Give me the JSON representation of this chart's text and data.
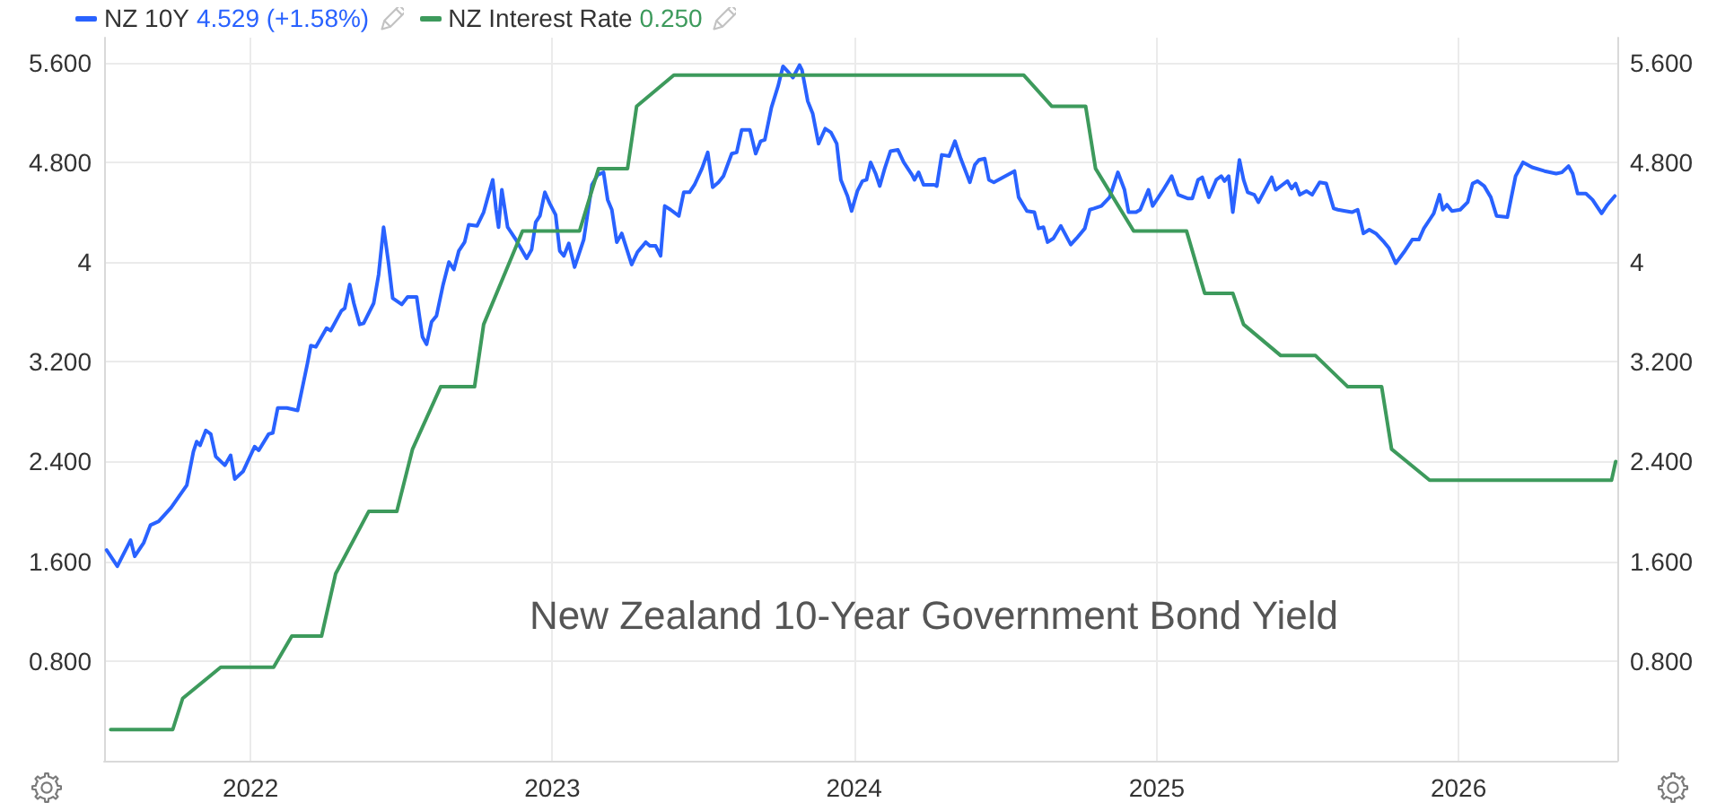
{
  "chart_data": {
    "type": "line",
    "title": "New Zealand 10-Year Government Bond Yield",
    "annotations": [
      "4.529 (+1.58%)",
      "0.250"
    ],
    "xlim": [
      "2021-07-08",
      "2026-07-12"
    ],
    "xticks": [
      "2022",
      "2023",
      "2024",
      "2025",
      "2026"
    ],
    "ylim": [
      0,
      5.8
    ],
    "yticks": [
      {
        "value": 0.8,
        "label": "0.800"
      },
      {
        "value": 1.6,
        "label": "1.600"
      },
      {
        "value": 2.4,
        "label": "2.400"
      },
      {
        "value": 3.2,
        "label": "3.200"
      },
      4,
      {
        "value": 4.8,
        "label": "4.800"
      },
      {
        "value": 5.6,
        "label": "5.600"
      }
    ],
    "y2lim": [
      0,
      5.8
    ],
    "y2ticks": [
      {
        "value": 0.8,
        "label": "0.800"
      },
      {
        "value": 1.6,
        "label": "1.600"
      },
      {
        "value": 2.4,
        "label": "2.400"
      },
      {
        "value": 3.2,
        "label": "3.200"
      },
      4,
      {
        "value": 4.8,
        "label": "4.800"
      },
      {
        "value": 5.6,
        "label": "5.600"
      }
    ],
    "grid": true,
    "legend": "top left",
    "series": [
      {
        "name": "NZ 10Y",
        "color": "#2962ff",
        "x": [
          "2021-07-11",
          "2021-07-24",
          "2021-08-09",
          "2021-08-14",
          "2021-08-25",
          "2021-09-02",
          "2021-09-12",
          "2021-09-27",
          "2021-10-16",
          "2021-10-24",
          "2021-10-28",
          "2021-11-01",
          "2021-11-08",
          "2021-11-14",
          "2021-11-20",
          "2021-12-01",
          "2021-12-08",
          "2021-12-13",
          "2021-12-23",
          "2022-01-06",
          "2022-01-11",
          "2022-01-23",
          "2022-01-28",
          "2022-02-03",
          "2022-02-14",
          "2022-02-27",
          "2022-03-05",
          "2022-03-11",
          "2022-03-15",
          "2022-03-21",
          "2022-04-03",
          "2022-04-08",
          "2022-04-21",
          "2022-04-25",
          "2022-05-01",
          "2022-05-06",
          "2022-05-13",
          "2022-05-18",
          "2022-05-30",
          "2022-06-05",
          "2022-06-11",
          "2022-06-17",
          "2022-06-22",
          "2022-07-03",
          "2022-07-10",
          "2022-07-21",
          "2022-07-24",
          "2022-07-28",
          "2022-08-02",
          "2022-08-08",
          "2022-08-14",
          "2022-08-22",
          "2022-08-29",
          "2022-09-04",
          "2022-09-10",
          "2022-09-17",
          "2022-09-22",
          "2022-10-02",
          "2022-10-10",
          "2022-10-15",
          "2022-10-21",
          "2022-10-25",
          "2022-10-28",
          "2022-11-01",
          "2022-11-08",
          "2022-11-18",
          "2022-11-24",
          "2022-12-01",
          "2022-12-07",
          "2022-12-12",
          "2022-12-17",
          "2022-12-23",
          "2022-12-29",
          "2023-01-05",
          "2023-01-10",
          "2023-01-15",
          "2023-01-21",
          "2023-01-28",
          "2023-02-08",
          "2023-02-18",
          "2023-02-25",
          "2023-03-04",
          "2023-03-09",
          "2023-03-14",
          "2023-03-20",
          "2023-03-26",
          "2023-04-07",
          "2023-04-14",
          "2023-04-24",
          "2023-04-29",
          "2023-05-06",
          "2023-05-12",
          "2023-05-17",
          "2023-05-24",
          "2023-06-03",
          "2023-06-09",
          "2023-06-16",
          "2023-06-22",
          "2023-07-01",
          "2023-07-08",
          "2023-07-14",
          "2023-07-21",
          "2023-07-27",
          "2023-08-06",
          "2023-08-12",
          "2023-08-18",
          "2023-08-28",
          "2023-09-04",
          "2023-09-10",
          "2023-09-15",
          "2023-09-23",
          "2023-10-01",
          "2023-10-07",
          "2023-10-14",
          "2023-10-19",
          "2023-10-27",
          "2023-10-30",
          "2023-11-06",
          "2023-11-12",
          "2023-11-19",
          "2023-11-27",
          "2023-12-04",
          "2023-12-11",
          "2023-12-16",
          "2023-12-24",
          "2023-12-29",
          "2024-01-05",
          "2024-01-11",
          "2024-01-16",
          "2024-01-21",
          "2024-01-27",
          "2024-02-01",
          "2024-02-07",
          "2024-02-14",
          "2024-02-23",
          "2024-03-01",
          "2024-03-11",
          "2024-03-14",
          "2024-03-19",
          "2024-03-25",
          "2024-04-07",
          "2024-04-10",
          "2024-04-16",
          "2024-04-25",
          "2024-05-02",
          "2024-05-09",
          "2024-05-20",
          "2024-05-26",
          "2024-05-31",
          "2024-06-07",
          "2024-06-12",
          "2024-06-18",
          "2024-06-29",
          "2024-07-13",
          "2024-07-18",
          "2024-07-28",
          "2024-08-06",
          "2024-08-11",
          "2024-08-17",
          "2024-08-22",
          "2024-08-29",
          "2024-09-07",
          "2024-09-19",
          "2024-09-26",
          "2024-10-06",
          "2024-10-12",
          "2024-10-17",
          "2024-10-26",
          "2024-11-05",
          "2024-11-15",
          "2024-11-23",
          "2024-11-28",
          "2024-12-07",
          "2024-12-12",
          "2024-12-22",
          "2024-12-27",
          "2025-01-08",
          "2025-01-19",
          "2025-01-27",
          "2025-02-08",
          "2025-02-13",
          "2025-02-20",
          "2025-02-25",
          "2025-03-05",
          "2025-03-14",
          "2025-03-20",
          "2025-03-24",
          "2025-03-29",
          "2025-04-03",
          "2025-04-11",
          "2025-04-16",
          "2025-04-21",
          "2025-04-29",
          "2025-05-04",
          "2025-05-20",
          "2025-05-25",
          "2025-06-02",
          "2025-06-08",
          "2025-06-13",
          "2025-06-18",
          "2025-06-23",
          "2025-07-01",
          "2025-07-08",
          "2025-07-17",
          "2025-07-25",
          "2025-08-03",
          "2025-08-08",
          "2025-08-17",
          "2025-08-25",
          "2025-09-01",
          "2025-09-08",
          "2025-09-15",
          "2025-09-23",
          "2025-10-03",
          "2025-10-09",
          "2025-10-17",
          "2025-10-27",
          "2025-11-06",
          "2025-11-14",
          "2025-11-20",
          "2025-11-28",
          "2025-12-02",
          "2025-12-09",
          "2025-12-13",
          "2025-12-18",
          "2025-12-24",
          "2026-01-03",
          "2026-01-12",
          "2026-01-18",
          "2026-01-24",
          "2026-02-01",
          "2026-02-09",
          "2026-02-16",
          "2026-03-01",
          "2026-03-11",
          "2026-03-20",
          "2026-03-31",
          "2026-04-15",
          "2026-04-29",
          "2026-05-06",
          "2026-05-14",
          "2026-05-19",
          "2026-05-25",
          "2026-06-04",
          "2026-06-12",
          "2026-06-23",
          "2026-06-30",
          "2026-07-09"
        ],
        "values": [
          1.69,
          1.56,
          1.77,
          1.64,
          1.75,
          1.89,
          1.92,
          2.03,
          2.21,
          2.48,
          2.56,
          2.53,
          2.65,
          2.62,
          2.44,
          2.37,
          2.45,
          2.26,
          2.32,
          2.52,
          2.49,
          2.62,
          2.63,
          2.83,
          2.83,
          2.81,
          3.0,
          3.19,
          3.33,
          3.32,
          3.47,
          3.45,
          3.61,
          3.63,
          3.82,
          3.67,
          3.5,
          3.51,
          3.67,
          3.9,
          4.28,
          3.99,
          3.71,
          3.66,
          3.72,
          3.72,
          3.58,
          3.4,
          3.34,
          3.52,
          3.57,
          3.82,
          4.0,
          3.94,
          4.09,
          4.16,
          4.3,
          4.29,
          4.4,
          4.52,
          4.66,
          4.42,
          4.28,
          4.58,
          4.28,
          4.18,
          4.11,
          4.03,
          4.1,
          4.32,
          4.37,
          4.56,
          4.47,
          4.38,
          4.09,
          4.05,
          4.15,
          3.96,
          4.18,
          4.62,
          4.7,
          4.72,
          4.5,
          4.42,
          4.16,
          4.23,
          3.98,
          4.08,
          4.16,
          4.13,
          4.13,
          4.05,
          4.45,
          4.42,
          4.37,
          4.56,
          4.56,
          4.62,
          4.75,
          4.88,
          4.6,
          4.64,
          4.69,
          4.87,
          4.88,
          5.06,
          5.06,
          4.87,
          4.97,
          4.98,
          5.24,
          5.41,
          5.57,
          5.52,
          5.48,
          5.58,
          5.54,
          5.29,
          5.19,
          4.95,
          5.07,
          5.04,
          4.95,
          4.66,
          4.53,
          4.41,
          4.57,
          4.65,
          4.66,
          4.8,
          4.71,
          4.61,
          4.75,
          4.89,
          4.9,
          4.8,
          4.7,
          4.66,
          4.72,
          4.62,
          4.62,
          4.61,
          4.86,
          4.85,
          4.97,
          4.83,
          4.64,
          4.78,
          4.82,
          4.83,
          4.66,
          4.64,
          4.68,
          4.73,
          4.52,
          4.41,
          4.4,
          4.27,
          4.28,
          4.16,
          4.19,
          4.29,
          4.14,
          4.19,
          4.27,
          4.42,
          4.43,
          4.45,
          4.52,
          4.72,
          4.58,
          4.4,
          4.4,
          4.42,
          4.58,
          4.45,
          4.57,
          4.69,
          4.54,
          4.51,
          4.51,
          4.66,
          4.68,
          4.52,
          4.66,
          4.69,
          4.65,
          4.69,
          4.4,
          4.82,
          4.66,
          4.56,
          4.54,
          4.48,
          4.68,
          4.58,
          4.62,
          4.65,
          4.59,
          4.63,
          4.54,
          4.57,
          4.54,
          4.64,
          4.63,
          4.43,
          4.42,
          4.41,
          4.4,
          4.42,
          4.23,
          4.26,
          4.23,
          4.16,
          4.11,
          3.99,
          4.08,
          4.18,
          4.18,
          4.27,
          4.35,
          4.39,
          4.54,
          4.42,
          4.46,
          4.41,
          4.42,
          4.48,
          4.63,
          4.65,
          4.61,
          4.52,
          4.37,
          4.36,
          4.69,
          4.8,
          4.76,
          4.73,
          4.71,
          4.72,
          4.77,
          4.71,
          4.55,
          4.55,
          4.5,
          4.39,
          4.46,
          4.53
        ]
      },
      {
        "name": "NZ Interest Rate",
        "color": "#3d9a5c",
        "x": [
          "2021-07-16",
          "2021-09-29",
          "2021-10-11",
          "2021-11-26",
          "2022-01-29",
          "2022-02-20",
          "2022-03-28",
          "2022-04-14",
          "2022-05-24",
          "2022-06-27",
          "2022-07-16",
          "2022-08-19",
          "2022-09-29",
          "2022-10-10",
          "2022-11-26",
          "2023-02-03",
          "2023-02-26",
          "2023-04-02",
          "2023-04-13",
          "2023-05-28",
          "2024-07-24",
          "2024-08-27",
          "2024-10-07",
          "2024-10-19",
          "2024-12-04",
          "2025-02-06",
          "2025-02-28",
          "2025-04-03",
          "2025-04-16",
          "2025-05-31",
          "2025-07-12",
          "2025-08-20",
          "2025-09-30",
          "2025-10-12",
          "2025-11-27",
          "2026-07-05",
          "2026-07-10"
        ],
        "values": [
          0.25,
          0.25,
          0.5,
          0.75,
          0.75,
          1.0,
          1.0,
          1.5,
          2.0,
          2.0,
          2.5,
          3.0,
          3.0,
          3.5,
          4.25,
          4.25,
          4.75,
          4.75,
          5.25,
          5.5,
          5.5,
          5.25,
          5.25,
          4.75,
          4.25,
          4.25,
          3.75,
          3.75,
          3.5,
          3.25,
          3.25,
          3.0,
          3.0,
          2.5,
          2.25,
          2.25,
          2.4
        ]
      }
    ]
  }
}
